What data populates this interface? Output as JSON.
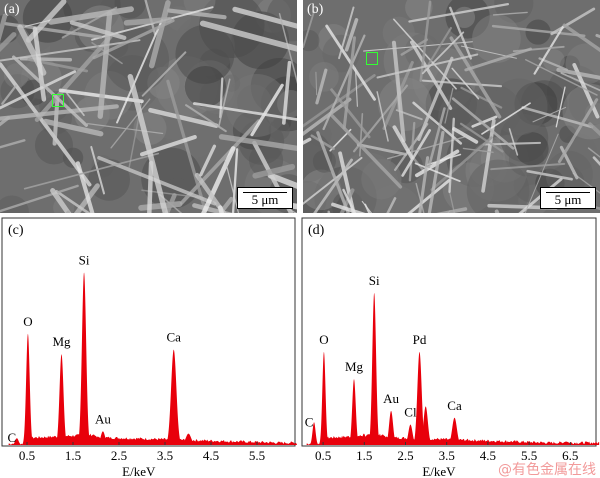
{
  "panels": {
    "a": {
      "label": "(a)",
      "scale": "5 μm"
    },
    "b": {
      "label": "(b)",
      "scale": "5 μm"
    }
  },
  "watermark": "@有色金属在线",
  "colors": {
    "spectrum": "#e8000b",
    "roi": "#33ff33"
  },
  "chart_data": [
    {
      "type": "area",
      "panel_label": "(c)",
      "xlabel": "E/keV",
      "xlabel_italic": "E",
      "xlabel_unit": "/keV",
      "xticks": [
        "0.5",
        "1.5",
        "2.5",
        "3.5",
        "4.5",
        "5.5"
      ],
      "xlim": [
        0,
        6.37
      ],
      "ylim": [
        0,
        100
      ],
      "yaxis": "relative intensity (unlabeled)",
      "peaks": [
        {
          "element": "C",
          "x": 0.28,
          "y": 3
        },
        {
          "element": "O",
          "x": 0.52,
          "y": 49
        },
        {
          "element": "Mg",
          "x": 1.25,
          "y": 40
        },
        {
          "element": "Si",
          "x": 1.74,
          "y": 76
        },
        {
          "element": "Au",
          "x": 2.15,
          "y": 6
        },
        {
          "element": "Ca",
          "x": 3.69,
          "y": 42
        },
        {
          "element": "",
          "x": 4.01,
          "y": 5
        }
      ]
    },
    {
      "type": "area",
      "panel_label": "(d)",
      "xlabel": "E/keV",
      "xlabel_italic": "E",
      "xlabel_unit": "/keV",
      "xticks": [
        "0.5",
        "1.5",
        "2.5",
        "3.5",
        "4.5",
        "5.5",
        "6.5"
      ],
      "xlim": [
        0,
        7.2
      ],
      "ylim": [
        0,
        100
      ],
      "yaxis": "relative intensity (unlabeled)",
      "peaks": [
        {
          "element": "C",
          "x": 0.28,
          "y": 10
        },
        {
          "element": "O",
          "x": 0.52,
          "y": 41
        },
        {
          "element": "Mg",
          "x": 1.25,
          "y": 29
        },
        {
          "element": "",
          "x": 1.49,
          "y": 5
        },
        {
          "element": "Si",
          "x": 1.74,
          "y": 67
        },
        {
          "element": "Au",
          "x": 2.15,
          "y": 15
        },
        {
          "element": "Cl",
          "x": 2.62,
          "y": 9
        },
        {
          "element": "Pd",
          "x": 2.84,
          "y": 41
        },
        {
          "element": "",
          "x": 2.99,
          "y": 17
        },
        {
          "element": "Ca",
          "x": 3.69,
          "y": 12
        },
        {
          "element": "",
          "x": 6.4,
          "y": 1.5
        }
      ]
    }
  ]
}
